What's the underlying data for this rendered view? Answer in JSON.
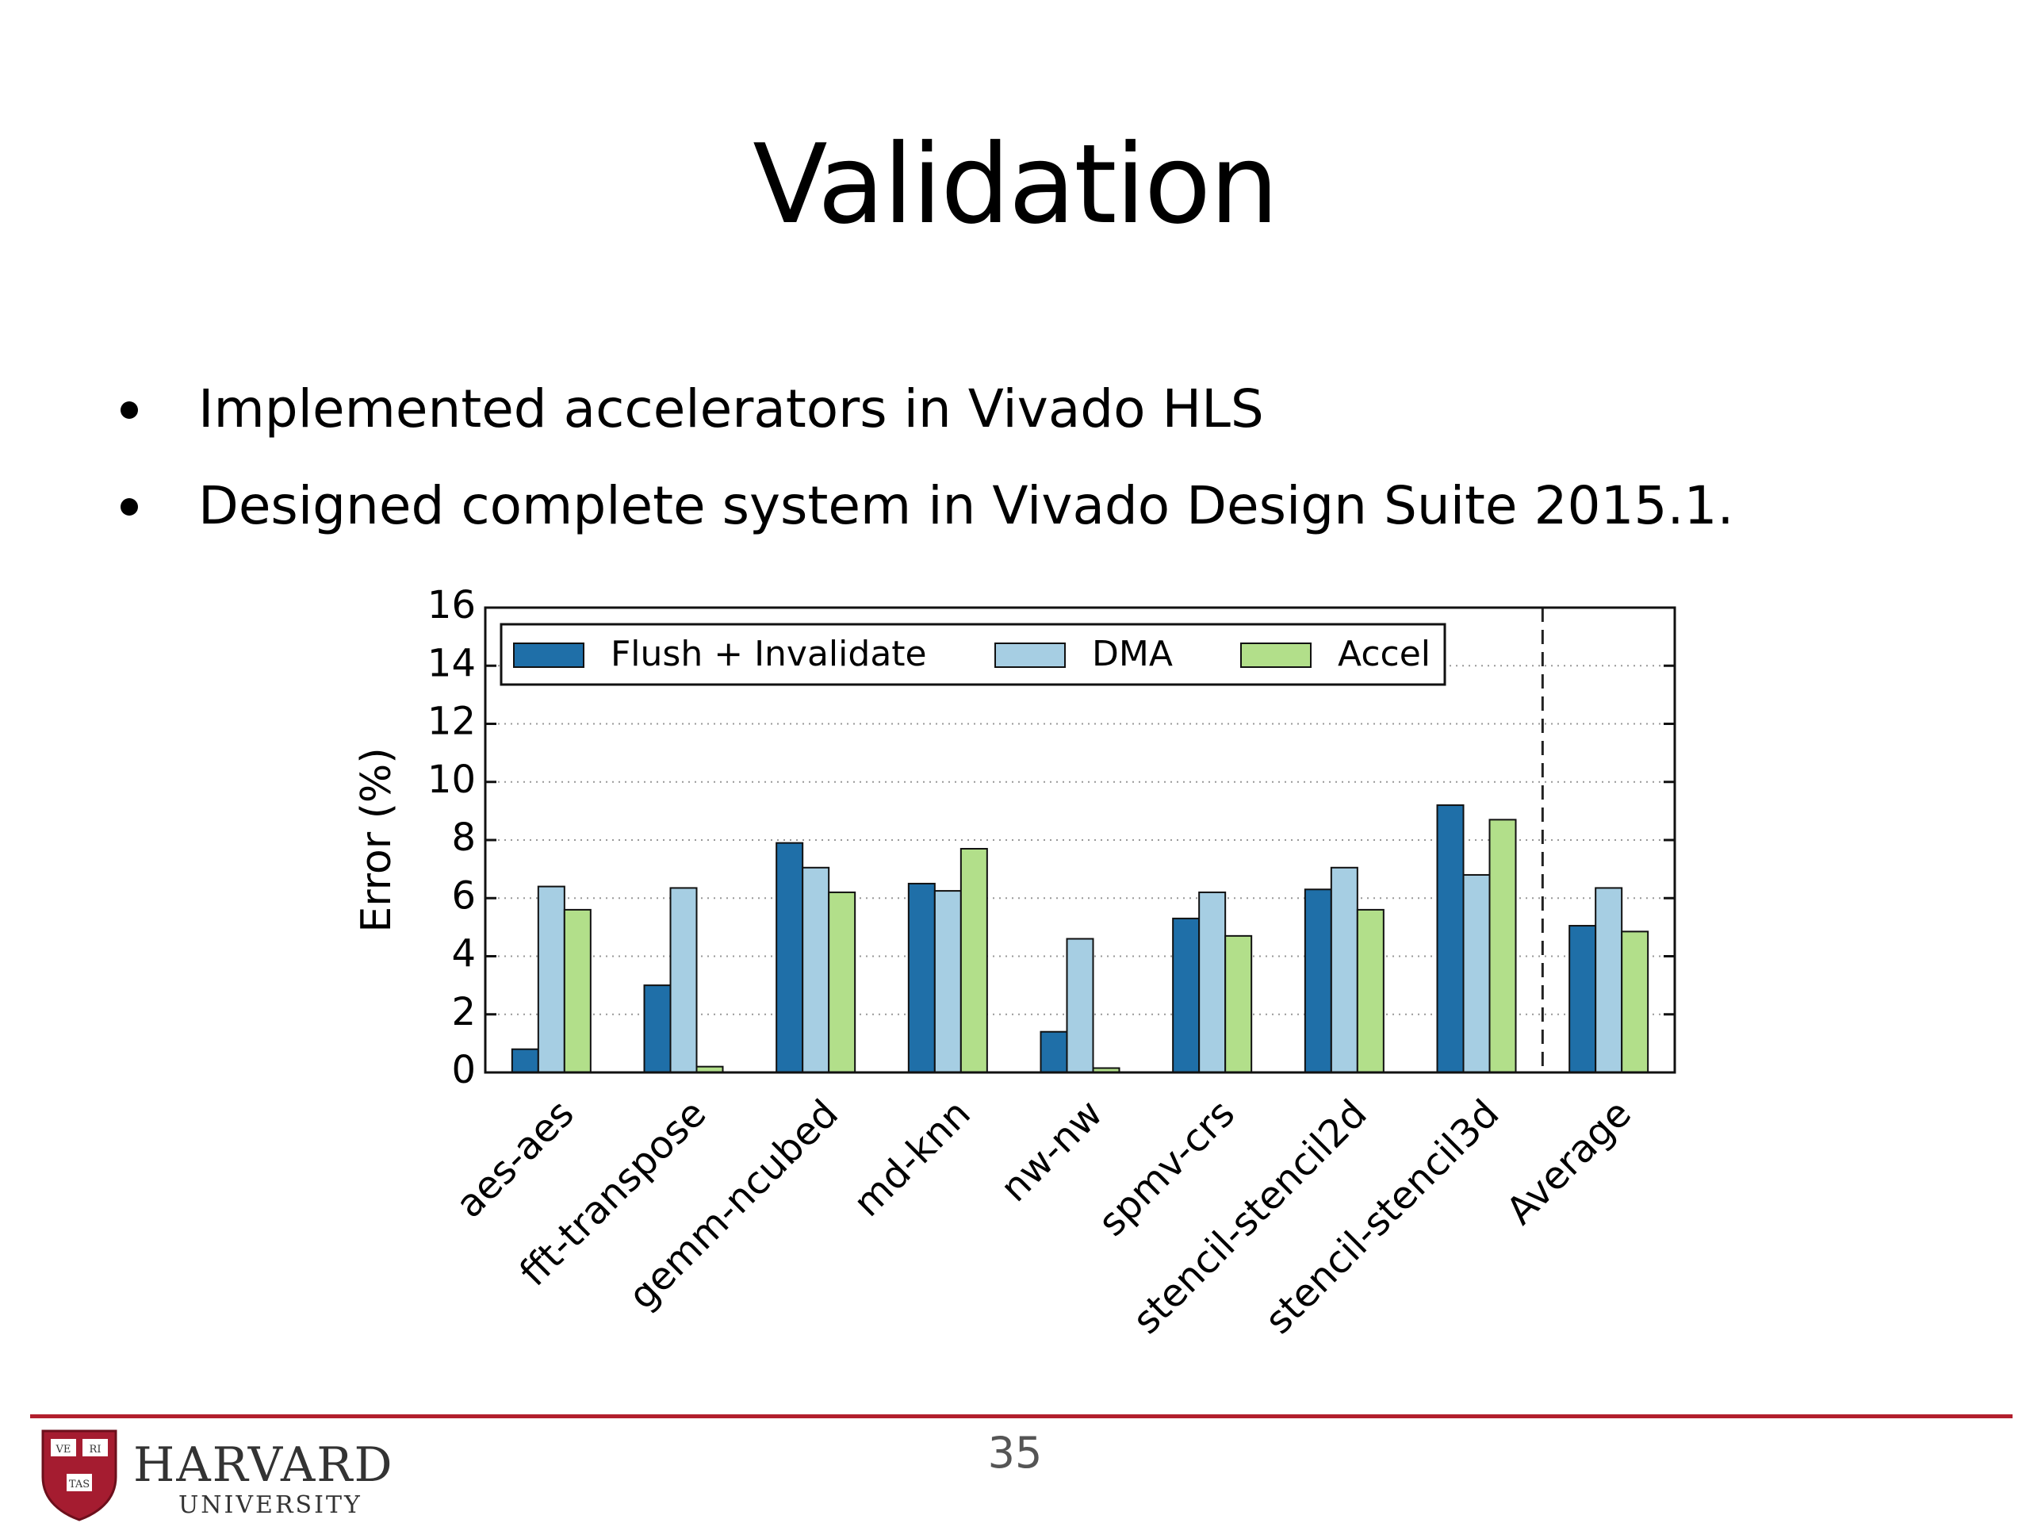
{
  "slide": {
    "title": "Validation",
    "bullets": [
      "Implemented accelerators in Vivado HLS",
      "Designed complete system in Vivado Design Suite 2015.1."
    ],
    "page_number": "35"
  },
  "footer": {
    "logo_wordmark": "HARVARD",
    "logo_subtitle": "UNIVERSITY",
    "shield_text": [
      "VE",
      "RI",
      "TAS"
    ],
    "rule_color": "#b21f2d"
  },
  "chart_data": {
    "type": "bar",
    "title": "",
    "xlabel": "",
    "ylabel": "Error (%)",
    "ylim": [
      0,
      16
    ],
    "yticks": [
      0,
      2,
      4,
      6,
      8,
      10,
      12,
      14,
      16
    ],
    "grid": "horizontal dotted",
    "legend_position": "top",
    "separator_before": "Average",
    "categories": [
      "aes-aes",
      "fft-transpose",
      "gemm-ncubed",
      "md-knn",
      "nw-nw",
      "spmv-crs",
      "stencil-stencil2d",
      "stencil-stencil3d",
      "Average"
    ],
    "series": [
      {
        "name": "Flush + Invalidate",
        "color": "#1f6fa8",
        "values": [
          0.8,
          3.0,
          7.9,
          6.5,
          1.4,
          5.3,
          6.3,
          9.2,
          5.05
        ]
      },
      {
        "name": "DMA",
        "color": "#a6cee3",
        "values": [
          6.4,
          6.35,
          7.05,
          6.25,
          4.6,
          6.2,
          7.05,
          6.8,
          6.35
        ]
      },
      {
        "name": "Accel",
        "color": "#b2df8a",
        "values": [
          5.6,
          0.2,
          6.2,
          7.7,
          0.15,
          4.7,
          5.6,
          8.7,
          4.85
        ]
      }
    ]
  }
}
